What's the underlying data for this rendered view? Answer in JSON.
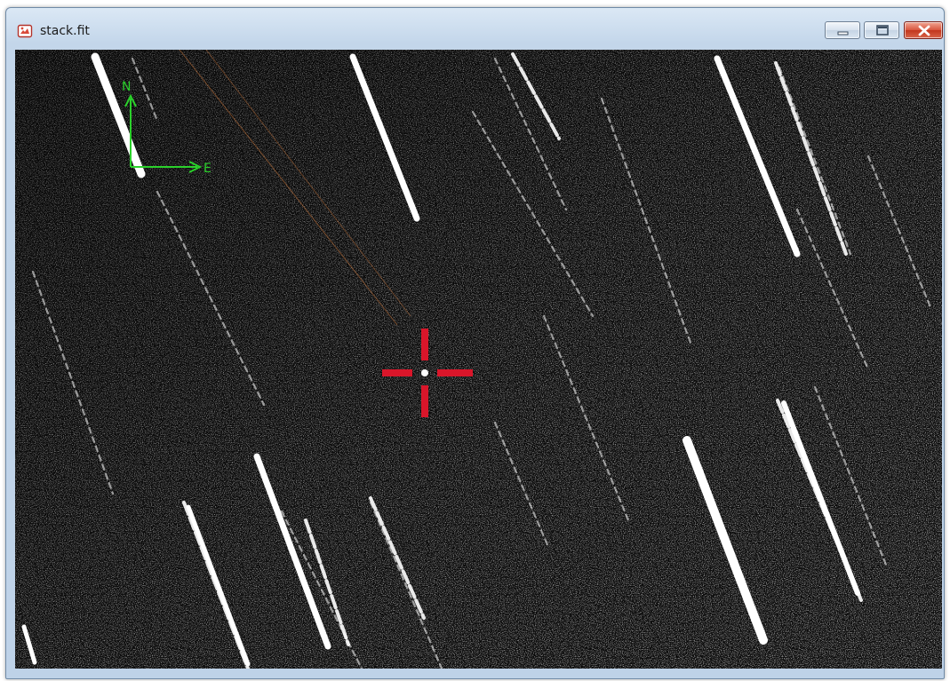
{
  "window": {
    "title": "stack.fit",
    "title_icon": "fits-image-icon",
    "controls": {
      "minimize_icon": "minimize-icon",
      "maximize_icon": "maximize-icon",
      "close_icon": "close-icon"
    }
  },
  "image": {
    "content": "star-field-with-streaks",
    "compass": {
      "north_label": "N",
      "east_label": "E",
      "color": "#2bd12b"
    },
    "target_marker": {
      "icon": "crosshair-icon",
      "color": "#d9162a"
    }
  }
}
